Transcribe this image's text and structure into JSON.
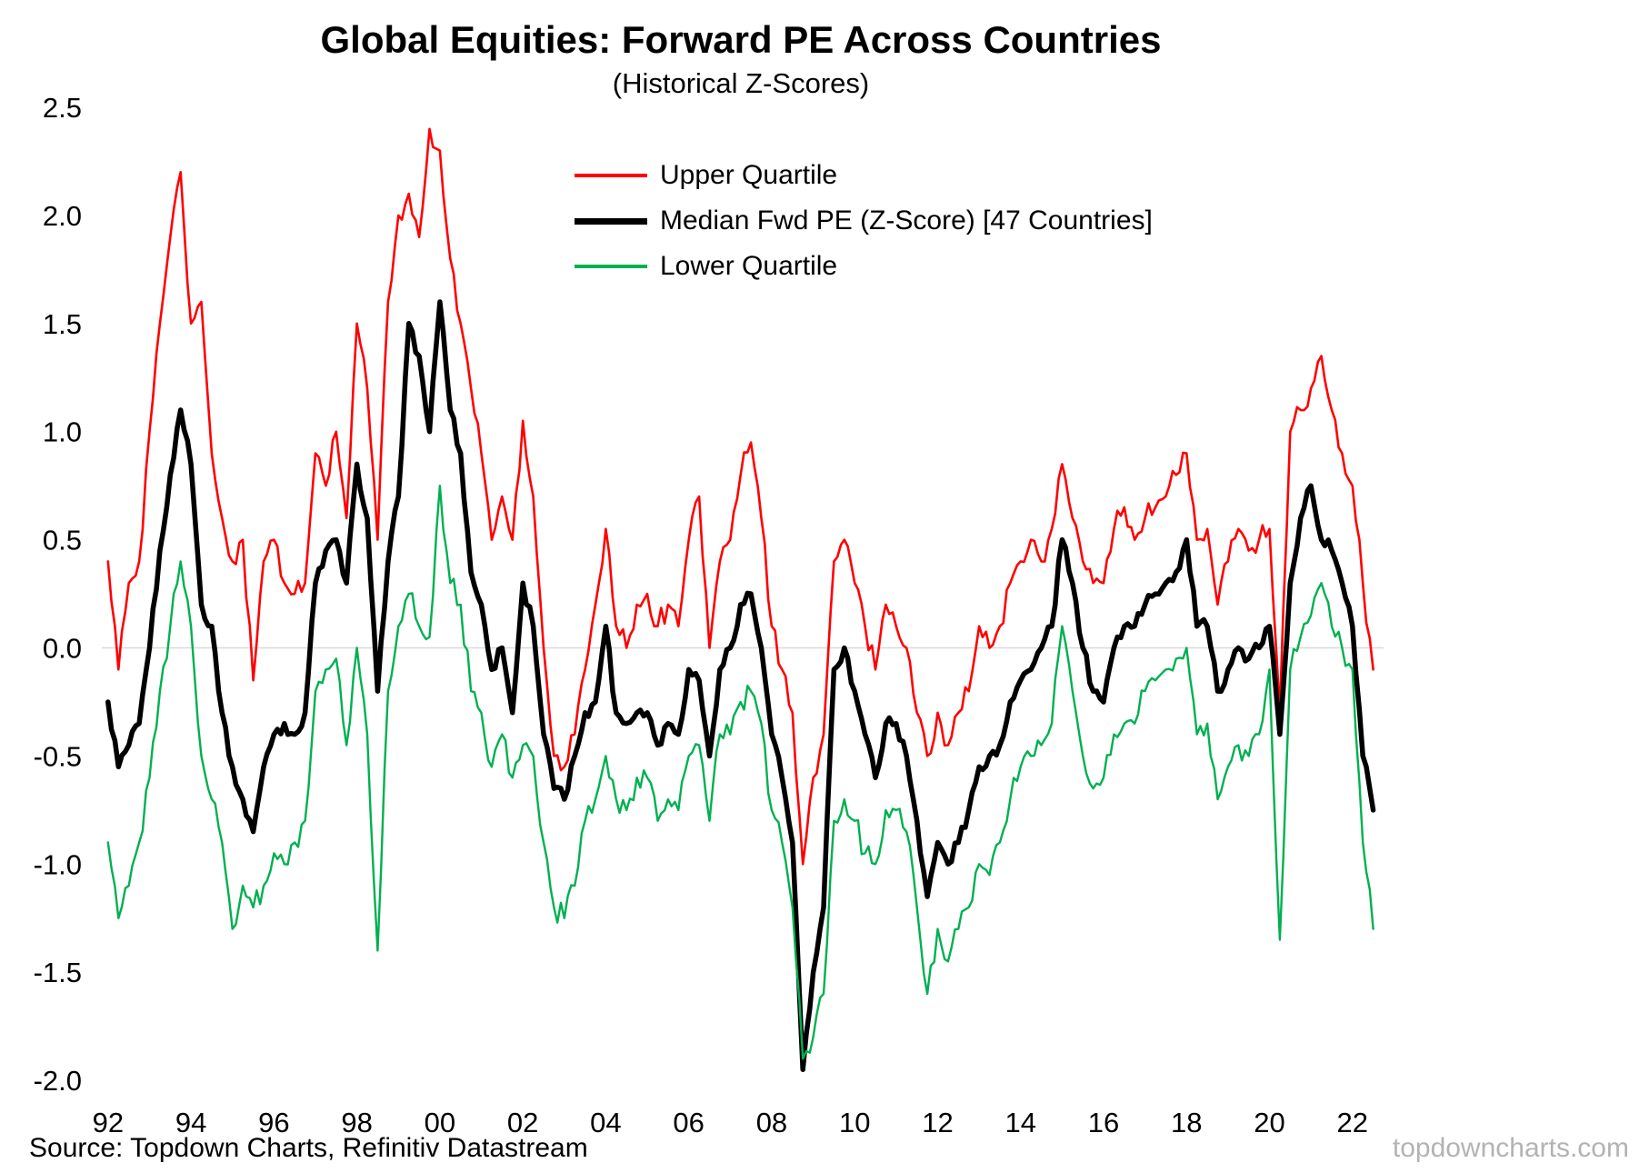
{
  "title": "Global Equities: Forward PE Across Countries",
  "subtitle": "(Historical Z-Scores)",
  "footer": {
    "source": "Source: Topdown Charts, Refinitiv Datastream",
    "watermark": "topdowncharts.com"
  },
  "chart_data": {
    "type": "line",
    "title": "Global Equities: Forward PE Across Countries",
    "subtitle": "(Historical Z-Scores)",
    "xlabel": "",
    "ylabel": "",
    "x_start": 1992.0,
    "x_step": 0.25,
    "xlim": [
      1991.85,
      2022.75
    ],
    "ylim": [
      -2.05,
      2.5
    ],
    "grid": "zero-line-only",
    "zero_line_color": "#d9d9d9",
    "legend_position": "inside-top-center",
    "y_ticks": [
      {
        "v": 2.5,
        "label": "2.5"
      },
      {
        "v": 2.0,
        "label": "2.0"
      },
      {
        "v": 1.5,
        "label": "1.5"
      },
      {
        "v": 1.0,
        "label": "1.0"
      },
      {
        "v": 0.5,
        "label": "0.5"
      },
      {
        "v": 0.0,
        "label": "0.0"
      },
      {
        "v": -0.5,
        "label": "-0.5"
      },
      {
        "v": -1.0,
        "label": "-1.0"
      },
      {
        "v": -1.5,
        "label": "-1.5"
      },
      {
        "v": -2.0,
        "label": "-2.0"
      }
    ],
    "x_ticks": [
      {
        "v": 1992,
        "label": "92"
      },
      {
        "v": 1994,
        "label": "94"
      },
      {
        "v": 1996,
        "label": "96"
      },
      {
        "v": 1998,
        "label": "98"
      },
      {
        "v": 2000,
        "label": "00"
      },
      {
        "v": 2002,
        "label": "02"
      },
      {
        "v": 2004,
        "label": "04"
      },
      {
        "v": 2006,
        "label": "06"
      },
      {
        "v": 2008,
        "label": "08"
      },
      {
        "v": 2010,
        "label": "10"
      },
      {
        "v": 2012,
        "label": "12"
      },
      {
        "v": 2014,
        "label": "14"
      },
      {
        "v": 2016,
        "label": "16"
      },
      {
        "v": 2018,
        "label": "18"
      },
      {
        "v": 2020,
        "label": "20"
      },
      {
        "v": 2022,
        "label": "22"
      }
    ],
    "series": [
      {
        "name": "Upper Quartile",
        "color": "#FF0000",
        "width": 2.6,
        "values": [
          0.4,
          -0.1,
          0.3,
          0.4,
          1.0,
          1.5,
          1.9,
          2.2,
          1.5,
          1.6,
          0.9,
          0.6,
          0.4,
          0.5,
          -0.15,
          0.4,
          0.5,
          0.3,
          0.25,
          0.3,
          0.9,
          0.75,
          1.0,
          0.6,
          1.5,
          1.2,
          0.5,
          1.6,
          2.0,
          2.1,
          1.9,
          2.4,
          2.3,
          1.8,
          1.5,
          1.2,
          0.9,
          0.5,
          0.7,
          0.5,
          1.05,
          0.7,
          0.0,
          -0.5,
          -0.55,
          -0.4,
          -0.1,
          0.2,
          0.55,
          0.1,
          0.0,
          0.2,
          0.25,
          0.1,
          0.2,
          0.1,
          0.5,
          0.7,
          0.0,
          0.4,
          0.5,
          0.8,
          0.95,
          0.6,
          0.1,
          -0.1,
          -0.3,
          -1.0,
          -0.6,
          -0.4,
          0.4,
          0.5,
          0.3,
          0.1,
          -0.1,
          0.2,
          0.1,
          0.0,
          -0.3,
          -0.5,
          -0.3,
          -0.45,
          -0.3,
          -0.2,
          0.1,
          0.0,
          0.1,
          0.3,
          0.4,
          0.5,
          0.4,
          0.55,
          0.85,
          0.6,
          0.4,
          0.3,
          0.3,
          0.55,
          0.65,
          0.5,
          0.6,
          0.65,
          0.7,
          0.8,
          0.9,
          0.5,
          0.55,
          0.2,
          0.4,
          0.55,
          0.45,
          0.5,
          0.55,
          -0.3,
          1.0,
          1.1,
          1.2,
          1.35,
          1.1,
          0.9,
          0.75,
          0.3,
          -0.1
        ]
      },
      {
        "name": "Median Fwd PE (Z-Score) [47 Countries]",
        "color": "#000000",
        "width": 5.5,
        "values": [
          -0.25,
          -0.55,
          -0.45,
          -0.35,
          0.0,
          0.45,
          0.8,
          1.1,
          0.85,
          0.2,
          0.1,
          -0.3,
          -0.55,
          -0.7,
          -0.85,
          -0.55,
          -0.4,
          -0.35,
          -0.4,
          -0.3,
          0.3,
          0.45,
          0.5,
          0.3,
          0.85,
          0.6,
          -0.2,
          0.4,
          0.7,
          1.5,
          1.35,
          1.0,
          1.6,
          1.1,
          0.9,
          0.35,
          0.2,
          -0.1,
          0.0,
          -0.3,
          0.3,
          0.1,
          -0.4,
          -0.65,
          -0.7,
          -0.5,
          -0.3,
          -0.25,
          0.1,
          -0.3,
          -0.35,
          -0.3,
          -0.3,
          -0.45,
          -0.35,
          -0.4,
          -0.1,
          -0.15,
          -0.5,
          -0.1,
          0.0,
          0.2,
          0.25,
          0.0,
          -0.4,
          -0.6,
          -0.9,
          -1.95,
          -1.5,
          -1.2,
          -0.1,
          0.0,
          -0.2,
          -0.4,
          -0.6,
          -0.35,
          -0.35,
          -0.5,
          -0.8,
          -1.15,
          -0.9,
          -1.0,
          -0.9,
          -0.75,
          -0.55,
          -0.5,
          -0.45,
          -0.25,
          -0.15,
          -0.1,
          0.0,
          0.1,
          0.5,
          0.3,
          0.0,
          -0.2,
          -0.25,
          0.0,
          0.1,
          0.1,
          0.2,
          0.25,
          0.3,
          0.35,
          0.5,
          0.1,
          0.1,
          -0.2,
          -0.1,
          0.0,
          -0.05,
          0.0,
          0.1,
          -0.4,
          0.3,
          0.6,
          0.75,
          0.5,
          0.45,
          0.3,
          0.1,
          -0.5,
          -0.75
        ]
      },
      {
        "name": "Lower Quartile",
        "color": "#00B050",
        "width": 2.4,
        "values": [
          -0.9,
          -1.25,
          -1.1,
          -0.9,
          -0.6,
          -0.2,
          0.1,
          0.4,
          0.1,
          -0.5,
          -0.7,
          -0.9,
          -1.3,
          -1.1,
          -1.2,
          -1.1,
          -0.95,
          -1.0,
          -0.9,
          -0.8,
          -0.2,
          -0.1,
          -0.05,
          -0.45,
          0.0,
          -0.4,
          -1.4,
          -0.2,
          0.1,
          0.25,
          0.1,
          0.05,
          0.75,
          0.3,
          0.2,
          -0.2,
          -0.3,
          -0.55,
          -0.4,
          -0.6,
          -0.45,
          -0.5,
          -0.9,
          -1.2,
          -1.25,
          -1.1,
          -0.8,
          -0.7,
          -0.5,
          -0.7,
          -0.75,
          -0.6,
          -0.6,
          -0.8,
          -0.7,
          -0.75,
          -0.5,
          -0.45,
          -0.8,
          -0.4,
          -0.4,
          -0.25,
          -0.2,
          -0.35,
          -0.75,
          -0.9,
          -1.2,
          -1.9,
          -1.8,
          -1.6,
          -0.8,
          -0.7,
          -0.8,
          -0.95,
          -1.0,
          -0.75,
          -0.75,
          -0.85,
          -1.2,
          -1.6,
          -1.3,
          -1.45,
          -1.3,
          -1.2,
          -1.0,
          -1.05,
          -0.9,
          -0.7,
          -0.55,
          -0.5,
          -0.45,
          -0.35,
          0.1,
          -0.2,
          -0.5,
          -0.65,
          -0.6,
          -0.4,
          -0.35,
          -0.35,
          -0.2,
          -0.15,
          -0.1,
          -0.05,
          0.0,
          -0.4,
          -0.35,
          -0.7,
          -0.55,
          -0.45,
          -0.5,
          -0.4,
          -0.1,
          -1.35,
          -0.1,
          0.05,
          0.15,
          0.3,
          0.1,
          0.0,
          -0.1,
          -0.9,
          -1.3
        ]
      }
    ]
  }
}
